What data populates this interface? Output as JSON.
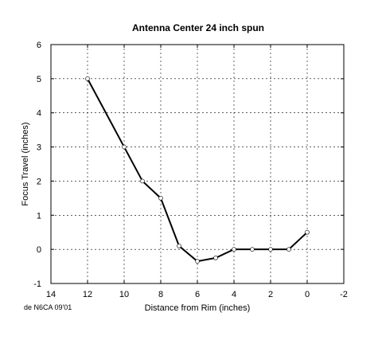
{
  "chart_data": {
    "type": "line",
    "title": "Antenna Center 24 inch spun",
    "xlabel": "Distance from Rim (inches)",
    "ylabel": "Focus Travel (inches)",
    "xlim": [
      14,
      -2
    ],
    "ylim": [
      -1,
      6
    ],
    "x_reversed": true,
    "x_ticks": [
      14,
      12,
      10,
      8,
      6,
      4,
      2,
      0,
      -2
    ],
    "y_ticks": [
      -1,
      0,
      1,
      2,
      3,
      4,
      5,
      6
    ],
    "grid": true,
    "series": [
      {
        "x": [
          12,
          10,
          9,
          8,
          7,
          6,
          5,
          4,
          3,
          2,
          1,
          0
        ],
        "y": [
          5,
          3,
          2,
          1.5,
          0.1,
          -0.35,
          -0.25,
          0,
          0,
          0,
          0,
          0.5
        ],
        "marker": "open-circle",
        "color": "#000000"
      }
    ],
    "annotation": "de N6CA 09'01"
  }
}
